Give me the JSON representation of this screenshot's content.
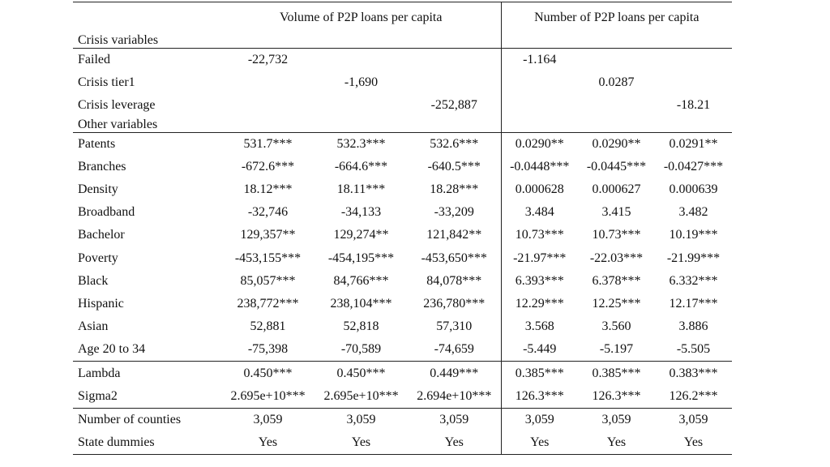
{
  "header": {
    "volume": "Volume of P2P loans per capita",
    "number": "Number of P2P loans per capita"
  },
  "sections": {
    "crisis": "Crisis variables",
    "other": "Other variables"
  },
  "crisis_rows": [
    {
      "label": "Failed",
      "values": [
        "-22,732",
        "",
        "",
        "-1.164",
        "",
        ""
      ]
    },
    {
      "label": "Crisis tier1",
      "values": [
        "",
        "-1,690",
        "",
        "",
        "0.0287",
        ""
      ]
    },
    {
      "label": "Crisis leverage",
      "values": [
        "",
        "",
        "-252,887",
        "",
        "",
        "-18.21"
      ]
    }
  ],
  "other_rows": [
    {
      "label": "Patents",
      "values": [
        "531.7***",
        "532.3***",
        "532.6***",
        "0.0290**",
        "0.0290**",
        "0.0291**"
      ]
    },
    {
      "label": "Branches",
      "values": [
        "-672.6***",
        "-664.6***",
        "-640.5***",
        "-0.0448***",
        "-0.0445***",
        "-0.0427***"
      ]
    },
    {
      "label": "Density",
      "values": [
        "18.12***",
        "18.11***",
        "18.28***",
        "0.000628",
        "0.000627",
        "0.000639"
      ]
    },
    {
      "label": "Broadband",
      "values": [
        "-32,746",
        "-34,133",
        "-33,209",
        "3.484",
        "3.415",
        "3.482"
      ]
    },
    {
      "label": "Bachelor",
      "values": [
        "129,357**",
        "129,274**",
        "121,842**",
        "10.73***",
        "10.73***",
        "10.19***"
      ]
    },
    {
      "label": "Poverty",
      "values": [
        "-453,155***",
        "-454,195***",
        "-453,650***",
        "-21.97***",
        "-22.03***",
        "-21.99***"
      ]
    },
    {
      "label": "Black",
      "values": [
        "85,057***",
        "84,766***",
        "84,078***",
        "6.393***",
        "6.378***",
        "6.332***"
      ]
    },
    {
      "label": "Hispanic",
      "values": [
        "238,772***",
        "238,104***",
        "236,780***",
        "12.29***",
        "12.25***",
        "12.17***"
      ]
    },
    {
      "label": "Asian",
      "values": [
        "52,881",
        "52,818",
        "57,310",
        "3.568",
        "3.560",
        "3.886"
      ]
    },
    {
      "label": "Age 20 to 34",
      "values": [
        "-75,398",
        "-70,589",
        "-74,659",
        "-5.449",
        "-5.197",
        "-5.505"
      ]
    }
  ],
  "model_rows": [
    {
      "label": "Lambda",
      "values": [
        "0.450***",
        "0.450***",
        "0.449***",
        "0.385***",
        "0.385***",
        "0.383***"
      ]
    },
    {
      "label": "Sigma2",
      "values": [
        "2.695e+10***",
        "2.695e+10***",
        "2.694e+10***",
        "126.3***",
        "126.3***",
        "126.2***"
      ]
    }
  ],
  "footer_rows": [
    {
      "label": "Number of counties",
      "values": [
        "3,059",
        "3,059",
        "3,059",
        "3,059",
        "3,059",
        "3,059"
      ]
    },
    {
      "label": "State dummies",
      "values": [
        "Yes",
        "Yes",
        "Yes",
        "Yes",
        "Yes",
        "Yes"
      ]
    }
  ]
}
